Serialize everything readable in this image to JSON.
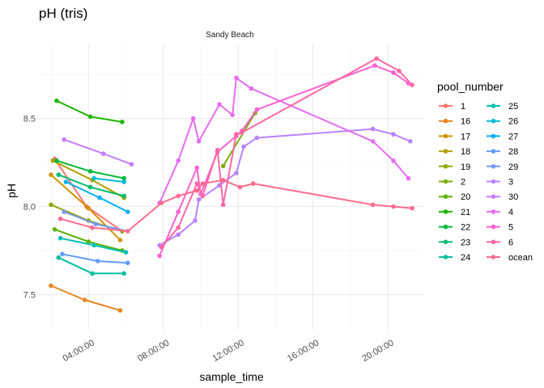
{
  "chart_data": {
    "type": "line",
    "title": "pH (tris)",
    "facet_label": "Sandy Beach",
    "xlabel": "sample_time",
    "ylabel": "pH",
    "xlim": [
      1.35,
      21.9
    ],
    "ylim": [
      7.3,
      8.92
    ],
    "x_ticks": [
      {
        "value": 4,
        "label": "04:00:00"
      },
      {
        "value": 8,
        "label": "08:00:00"
      },
      {
        "value": 12,
        "label": "12:00:00"
      },
      {
        "value": 16,
        "label": "16:00:00"
      },
      {
        "value": 20,
        "label": "20:00:00"
      }
    ],
    "y_ticks": [
      {
        "value": 7.5,
        "label": "7.5"
      },
      {
        "value": 8.0,
        "label": "8.0"
      },
      {
        "value": 8.5,
        "label": "8.5"
      }
    ],
    "grid": true,
    "legend_title": "pool_number",
    "legend_position": "right",
    "series": [
      {
        "name": "1",
        "color": "#F8766D",
        "points": [
          [
            2.2,
            8.27
          ],
          [
            3.9,
            8.0
          ],
          [
            5.8,
            7.86
          ]
        ]
      },
      {
        "name": "16",
        "color": "#E7851E",
        "points": [
          [
            2.0,
            7.55
          ],
          [
            3.8,
            7.47
          ],
          [
            5.7,
            7.41
          ]
        ]
      },
      {
        "name": "17",
        "color": "#D09400",
        "points": [
          [
            2.0,
            8.18
          ],
          [
            4.0,
            7.99
          ],
          [
            5.7,
            7.81
          ]
        ]
      },
      {
        "name": "18",
        "color": "#B2A100",
        "points": [
          [
            2.1,
            8.26
          ],
          [
            4.2,
            8.15
          ],
          [
            5.9,
            8.05
          ]
        ]
      },
      {
        "name": "19",
        "color": "#8AAB00",
        "points": [
          [
            2.0,
            8.01
          ],
          [
            4.0,
            7.92
          ],
          [
            5.8,
            7.86
          ]
        ]
      },
      {
        "name": "2",
        "color": "#7CAE00",
        "points": [
          [
            11.2,
            8.23
          ],
          [
            12.9,
            8.53
          ]
        ]
      },
      {
        "name": "20",
        "color": "#5BB300",
        "points": [
          [
            2.2,
            7.87
          ],
          [
            4.0,
            7.8
          ],
          [
            5.8,
            7.75
          ]
        ]
      },
      {
        "name": "21",
        "color": "#1FB600",
        "points": [
          [
            2.3,
            8.6
          ],
          [
            4.1,
            8.51
          ],
          [
            5.8,
            8.48
          ]
        ]
      },
      {
        "name": "22",
        "color": "#00BA38",
        "points": [
          [
            2.3,
            8.26
          ],
          [
            4.1,
            8.2
          ],
          [
            5.9,
            8.16
          ]
        ]
      },
      {
        "name": "23",
        "color": "#00BD6B",
        "points": [
          [
            2.4,
            8.18
          ],
          [
            4.1,
            8.11
          ],
          [
            5.9,
            8.06
          ]
        ]
      },
      {
        "name": "24",
        "color": "#00BFA0",
        "points": [
          [
            2.4,
            7.71
          ],
          [
            4.2,
            7.62
          ],
          [
            5.9,
            7.62
          ]
        ]
      },
      {
        "name": "25",
        "color": "#00C0B8",
        "points": [
          [
            2.5,
            7.82
          ],
          [
            4.3,
            7.78
          ],
          [
            6.0,
            7.74
          ]
        ]
      },
      {
        "name": "26",
        "color": "#00BCD6",
        "points": [
          [
            4.3,
            8.16
          ],
          [
            5.9,
            8.14
          ]
        ]
      },
      {
        "name": "27",
        "color": "#00B0F6",
        "points": [
          [
            2.8,
            8.14
          ],
          [
            4.6,
            8.05
          ],
          [
            6.1,
            7.97
          ]
        ]
      },
      {
        "name": "28",
        "color": "#619CFF",
        "points": [
          [
            2.6,
            7.73
          ],
          [
            4.5,
            7.69
          ],
          [
            6.1,
            7.68
          ]
        ]
      },
      {
        "name": "29",
        "color": "#7997FF",
        "points": [
          [
            2.7,
            7.97
          ],
          [
            4.4,
            7.9
          ],
          [
            6.1,
            7.86
          ]
        ]
      },
      {
        "name": "3",
        "color": "#B983FF",
        "points": [
          [
            7.8,
            7.78
          ],
          [
            8.8,
            7.84
          ],
          [
            9.7,
            7.92
          ],
          [
            9.9,
            8.04
          ],
          [
            11.0,
            8.12
          ],
          [
            11.9,
            8.19
          ],
          [
            12.3,
            8.34
          ],
          [
            13.0,
            8.39
          ],
          [
            19.2,
            8.44
          ],
          [
            20.3,
            8.41
          ],
          [
            21.2,
            8.37
          ]
        ]
      },
      {
        "name": "30",
        "color": "#C77CFF",
        "points": [
          [
            2.7,
            8.38
          ],
          [
            4.8,
            8.3
          ],
          [
            6.3,
            8.24
          ]
        ]
      },
      {
        "name": "4",
        "color": "#E76BF3",
        "points": [
          [
            7.8,
            8.02
          ],
          [
            8.8,
            8.26
          ],
          [
            9.6,
            8.5
          ],
          [
            9.9,
            8.37
          ],
          [
            11.0,
            8.58
          ],
          [
            11.7,
            8.52
          ],
          [
            11.9,
            8.73
          ],
          [
            12.7,
            8.67
          ],
          [
            19.2,
            8.37
          ],
          [
            20.3,
            8.26
          ],
          [
            21.1,
            8.16
          ]
        ]
      },
      {
        "name": "5",
        "color": "#FD61D1",
        "points": [
          [
            7.8,
            7.72
          ],
          [
            8.8,
            7.97
          ],
          [
            9.8,
            8.22
          ],
          [
            10.0,
            8.07
          ],
          [
            10.9,
            8.31
          ],
          [
            11.9,
            8.4
          ],
          [
            12.2,
            8.43
          ],
          [
            13.0,
            8.55
          ],
          [
            19.3,
            8.8
          ],
          [
            20.3,
            8.76
          ],
          [
            21.1,
            8.7
          ]
        ]
      },
      {
        "name": "6",
        "color": "#FF67A4",
        "points": [
          [
            7.9,
            7.77
          ],
          [
            8.8,
            7.88
          ],
          [
            9.8,
            8.13
          ],
          [
            10.1,
            8.06
          ],
          [
            10.9,
            8.32
          ],
          [
            11.2,
            8.01
          ],
          [
            11.9,
            8.41
          ],
          [
            12.2,
            8.42
          ],
          [
            19.4,
            8.84
          ],
          [
            20.6,
            8.77
          ],
          [
            21.3,
            8.69
          ]
        ]
      },
      {
        "name": "ocean",
        "color": "#FF6C90",
        "points": [
          [
            2.5,
            7.93
          ],
          [
            4.2,
            7.88
          ],
          [
            6.1,
            7.86
          ],
          [
            7.9,
            8.02
          ],
          [
            8.8,
            8.06
          ],
          [
            9.8,
            8.09
          ],
          [
            10.1,
            8.13
          ],
          [
            11.2,
            8.15
          ],
          [
            12.1,
            8.11
          ],
          [
            12.8,
            8.13
          ],
          [
            19.2,
            8.01
          ],
          [
            20.3,
            8.0
          ],
          [
            21.3,
            7.99
          ]
        ]
      }
    ]
  }
}
